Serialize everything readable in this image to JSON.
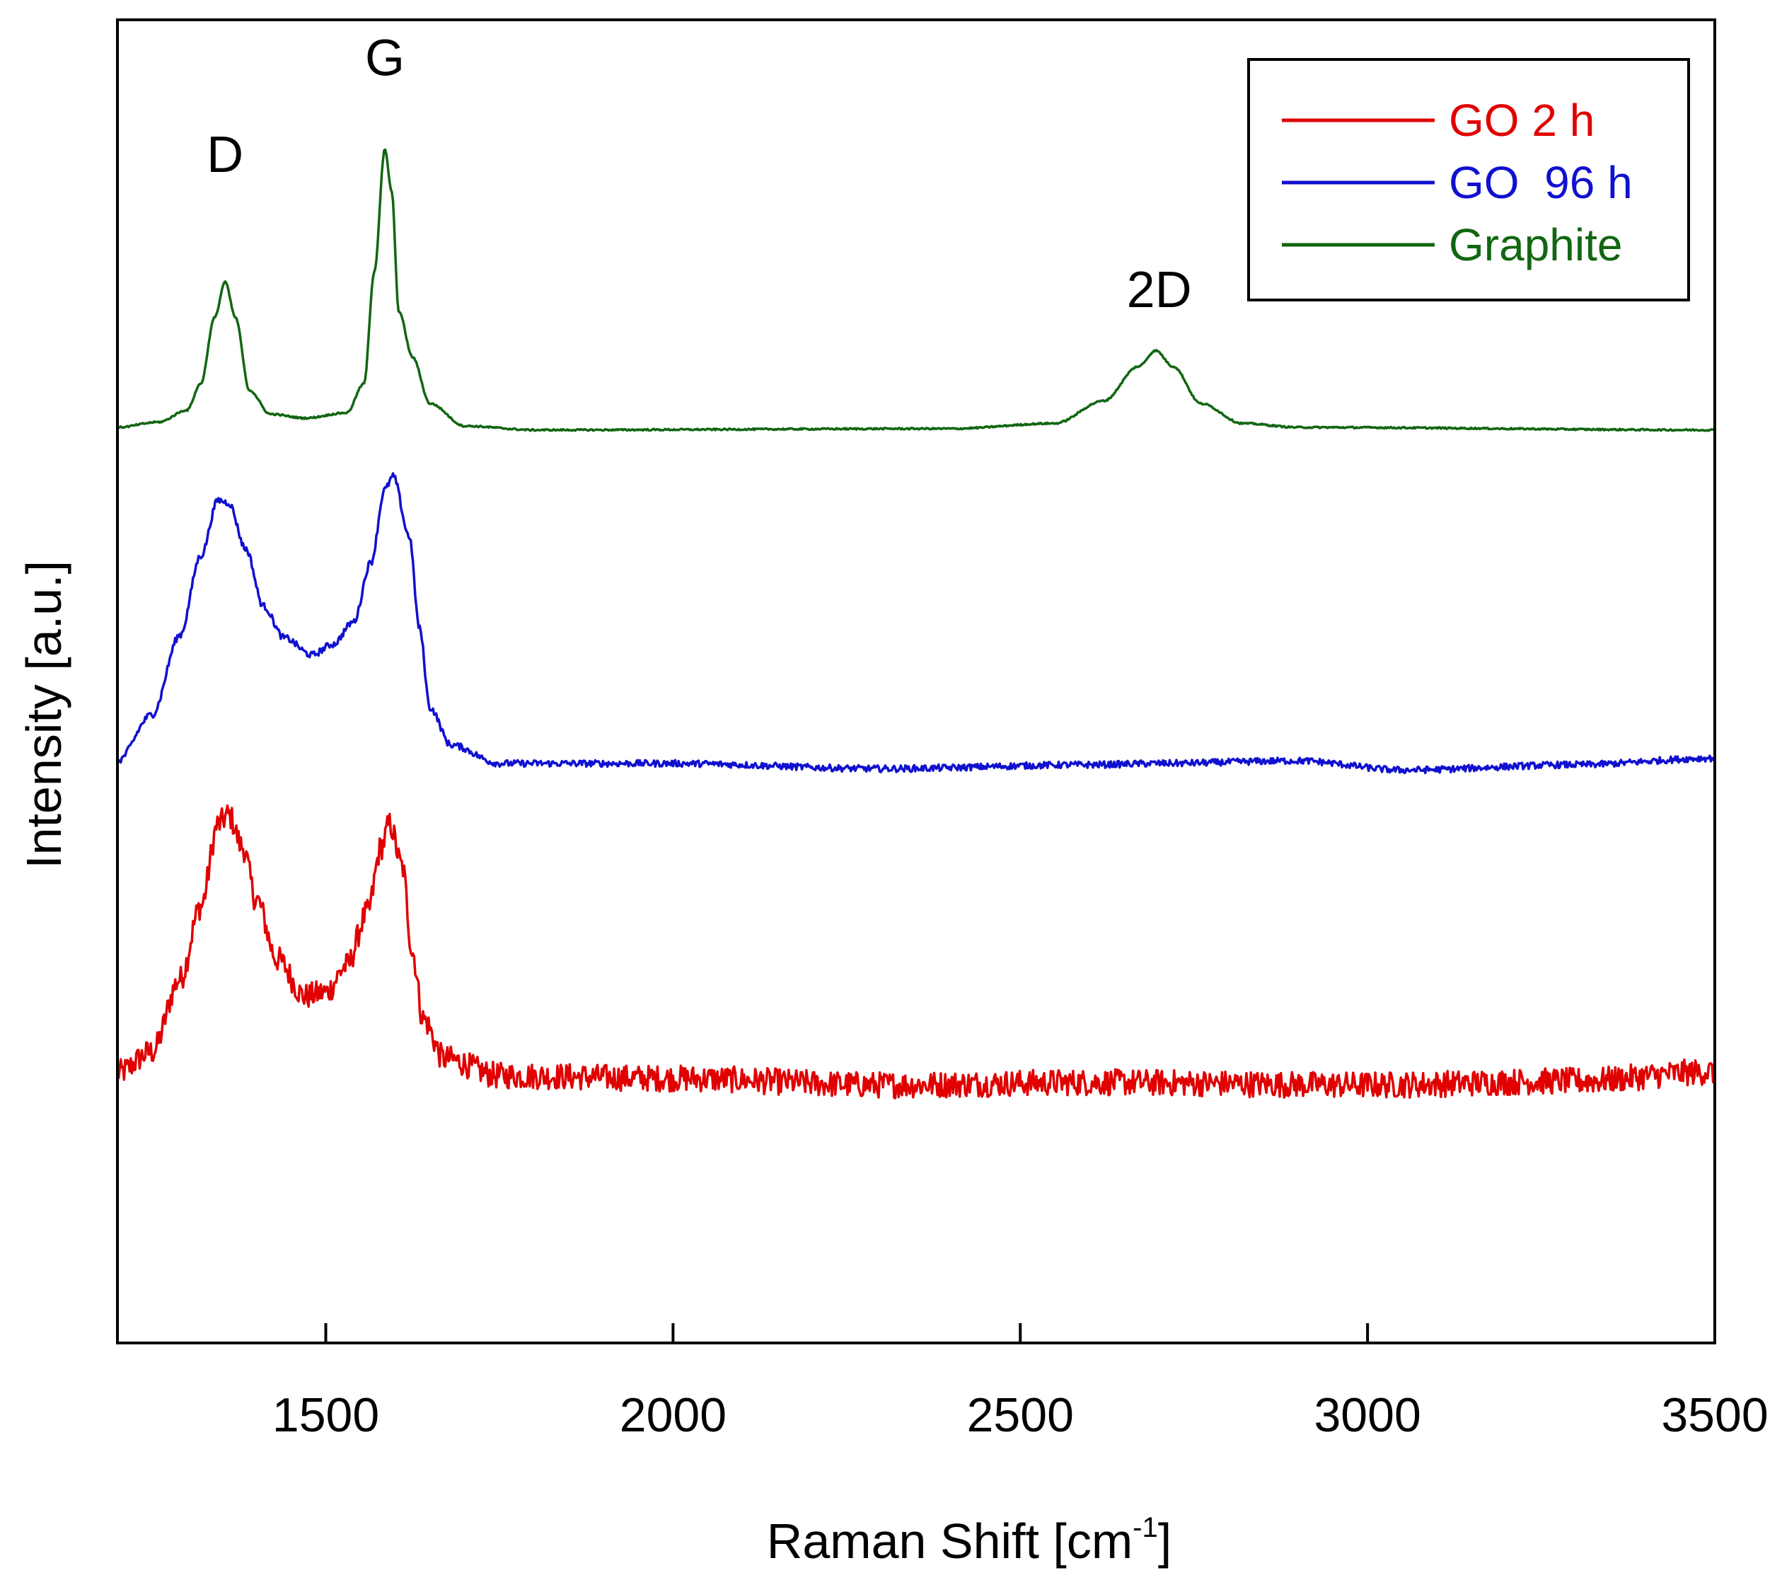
{
  "chart_data": {
    "type": "line",
    "title": "",
    "xlabel": "Raman Shift [cm",
    "xlabel_superscript": "-1",
    "xlabel_suffix": "]",
    "ylabel": "Intensity [a.u.]",
    "xlim": [
      1200,
      3500
    ],
    "ylim": [
      0,
      10
    ],
    "x_ticks": [
      1500,
      2000,
      2500,
      3000,
      3500
    ],
    "y_ticks_shown": false,
    "grid": false,
    "legend_position": "top-right",
    "peak_annotations": [
      {
        "label": "D",
        "x": 1355,
        "y": 8.85
      },
      {
        "label": "G",
        "x": 1585,
        "y": 9.58
      },
      {
        "label": "2D",
        "x": 2700,
        "y": 7.83
      }
    ],
    "series": [
      {
        "name": "GO 2 h",
        "color": "#e00000",
        "noise": 0.1,
        "points": [
          [
            1200,
            2.04
          ],
          [
            1250,
            2.2
          ],
          [
            1290,
            2.75
          ],
          [
            1320,
            3.3
          ],
          [
            1345,
            3.92
          ],
          [
            1360,
            3.99
          ],
          [
            1380,
            3.75
          ],
          [
            1400,
            3.35
          ],
          [
            1430,
            2.9
          ],
          [
            1470,
            2.62
          ],
          [
            1500,
            2.65
          ],
          [
            1530,
            2.85
          ],
          [
            1560,
            3.25
          ],
          [
            1580,
            3.75
          ],
          [
            1592,
            3.92
          ],
          [
            1610,
            3.6
          ],
          [
            1625,
            2.95
          ],
          [
            1640,
            2.45
          ],
          [
            1670,
            2.15
          ],
          [
            1750,
            2.02
          ],
          [
            2000,
            2.0
          ],
          [
            2300,
            1.95
          ],
          [
            2600,
            1.97
          ],
          [
            3000,
            1.95
          ],
          [
            3300,
            1.98
          ],
          [
            3500,
            2.05
          ]
        ]
      },
      {
        "name": "GO  96 h",
        "color": "#1010d0",
        "noise": 0.025,
        "points": [
          [
            1200,
            4.4
          ],
          [
            1250,
            4.75
          ],
          [
            1290,
            5.35
          ],
          [
            1320,
            5.95
          ],
          [
            1345,
            6.37
          ],
          [
            1360,
            6.35
          ],
          [
            1385,
            6.0
          ],
          [
            1410,
            5.57
          ],
          [
            1440,
            5.33
          ],
          [
            1480,
            5.2
          ],
          [
            1510,
            5.28
          ],
          [
            1540,
            5.45
          ],
          [
            1565,
            5.9
          ],
          [
            1585,
            6.45
          ],
          [
            1597,
            6.55
          ],
          [
            1620,
            6.1
          ],
          [
            1635,
            5.4
          ],
          [
            1650,
            4.8
          ],
          [
            1680,
            4.52
          ],
          [
            1750,
            4.38
          ],
          [
            2000,
            4.38
          ],
          [
            2300,
            4.34
          ],
          [
            2600,
            4.37
          ],
          [
            2700,
            4.38
          ],
          [
            2900,
            4.4
          ],
          [
            3050,
            4.33
          ],
          [
            3300,
            4.37
          ],
          [
            3500,
            4.42
          ]
        ]
      },
      {
        "name": "Graphite",
        "color": "#116611",
        "noise": 0.006,
        "points": [
          [
            1200,
            6.92
          ],
          [
            1260,
            6.96
          ],
          [
            1300,
            7.05
          ],
          [
            1320,
            7.25
          ],
          [
            1340,
            7.75
          ],
          [
            1355,
            8.02
          ],
          [
            1370,
            7.75
          ],
          [
            1390,
            7.2
          ],
          [
            1420,
            7.02
          ],
          [
            1470,
            6.99
          ],
          [
            1530,
            7.03
          ],
          [
            1555,
            7.25
          ],
          [
            1570,
            8.1
          ],
          [
            1585,
            9.02
          ],
          [
            1595,
            8.7
          ],
          [
            1605,
            7.8
          ],
          [
            1625,
            7.45
          ],
          [
            1650,
            7.1
          ],
          [
            1700,
            6.93
          ],
          [
            1800,
            6.9
          ],
          [
            2400,
            6.91
          ],
          [
            2550,
            6.95
          ],
          [
            2620,
            7.12
          ],
          [
            2670,
            7.38
          ],
          [
            2695,
            7.5
          ],
          [
            2720,
            7.38
          ],
          [
            2760,
            7.1
          ],
          [
            2820,
            6.95
          ],
          [
            2900,
            6.92
          ],
          [
            3500,
            6.9
          ]
        ]
      }
    ]
  }
}
